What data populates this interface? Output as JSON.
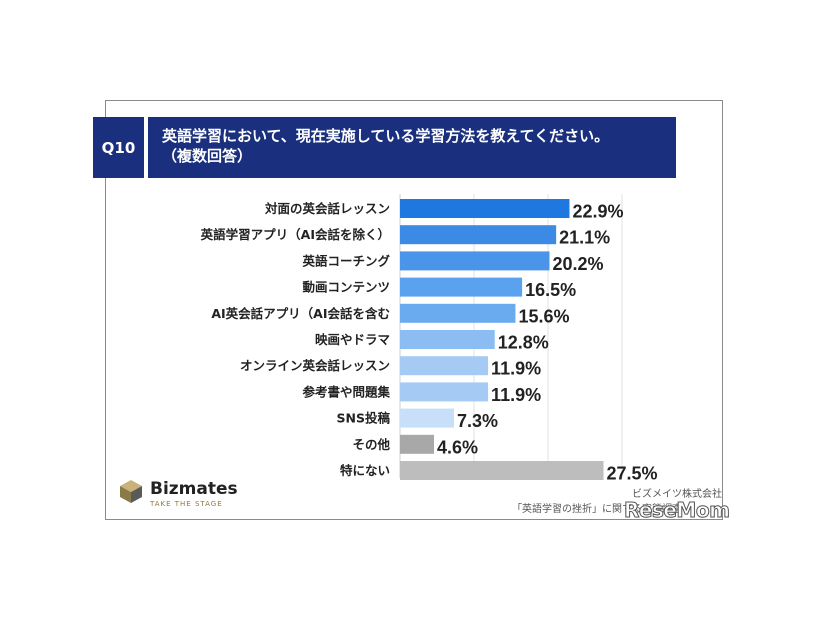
{
  "header": {
    "badge": "Q10",
    "title_line1": "英語学習において、現在実施している学習方法を教えてください。",
    "title_line2": "（複数回答）"
  },
  "brand": {
    "name": "Bizmates",
    "tagline": "TAKE THE STAGE"
  },
  "source": {
    "line1": "ビズメイツ株式会社",
    "line2": "「英語学習の挫折」に関する実態調査"
  },
  "watermark": "ReseMom",
  "chart_data": {
    "type": "bar",
    "orientation": "horizontal",
    "categories": [
      "対面の英会話レッスン",
      "英語学習アプリ（AI会話を除く）",
      "英語コーチング",
      "動画コンテンツ",
      "AI英会話アプリ（AI会話を含む",
      "映画やドラマ",
      "オンライン英会話レッスン",
      "参考書や問題集",
      "SNS投稿",
      "その他",
      "特にない"
    ],
    "values": [
      22.9,
      21.1,
      20.2,
      16.5,
      15.6,
      12.8,
      11.9,
      11.9,
      7.3,
      4.6,
      27.5
    ],
    "value_labels": [
      "22.9%",
      "21.1%",
      "20.2%",
      "16.5%",
      "15.6%",
      "12.8%",
      "11.9%",
      "11.9%",
      "7.3%",
      "4.6%",
      "27.5%"
    ],
    "colors": [
      "#1f78e0",
      "#3a8ae6",
      "#4a95ea",
      "#5aa1ee",
      "#6aabf0",
      "#8bbdf3",
      "#a5cbf5",
      "#a5cbf5",
      "#c7dff9",
      "#a8a8a8",
      "#bdbdbd"
    ],
    "xlim": [
      0,
      30
    ],
    "grid": true
  }
}
